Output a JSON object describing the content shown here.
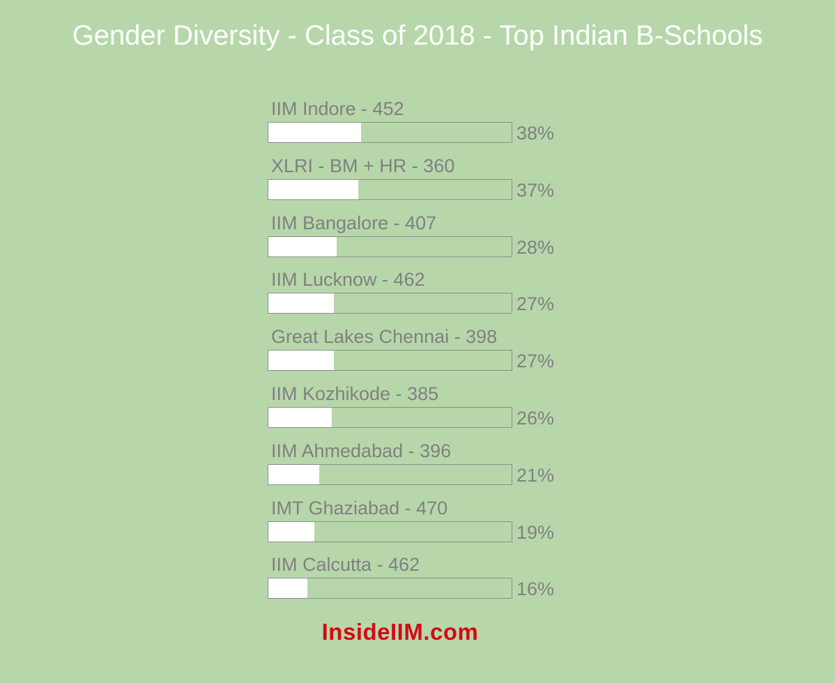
{
  "colors": {
    "background": "#b7d7aa",
    "title": "#ffffff",
    "bar_fill": "#ffffff",
    "bar_border": "#8d8d8d",
    "label_text": "#808080",
    "brand": "#d40a14"
  },
  "brand": "InsideIIM.com",
  "chart_data": {
    "type": "bar",
    "orientation": "horizontal",
    "title": "Gender Diversity - Class of 2018 - Top Indian B-Schools",
    "categories": [
      "IIM Indore - 452",
      "XLRI - BM + HR - 360",
      "IIM Bangalore - 407",
      "IIM Lucknow - 462",
      "Great Lakes Chennai - 398",
      "IIM Kozhikode - 385",
      "IIM Ahmedabad - 396",
      "IMT Ghaziabad - 470",
      "IIM Calcutta - 462"
    ],
    "values": [
      38,
      37,
      28,
      27,
      27,
      26,
      21,
      19,
      16
    ],
    "value_labels": [
      "38%",
      "37%",
      "28%",
      "27%",
      "27%",
      "26%",
      "21%",
      "19%",
      "16%"
    ],
    "xlim": [
      0,
      100
    ],
    "grid": false
  }
}
